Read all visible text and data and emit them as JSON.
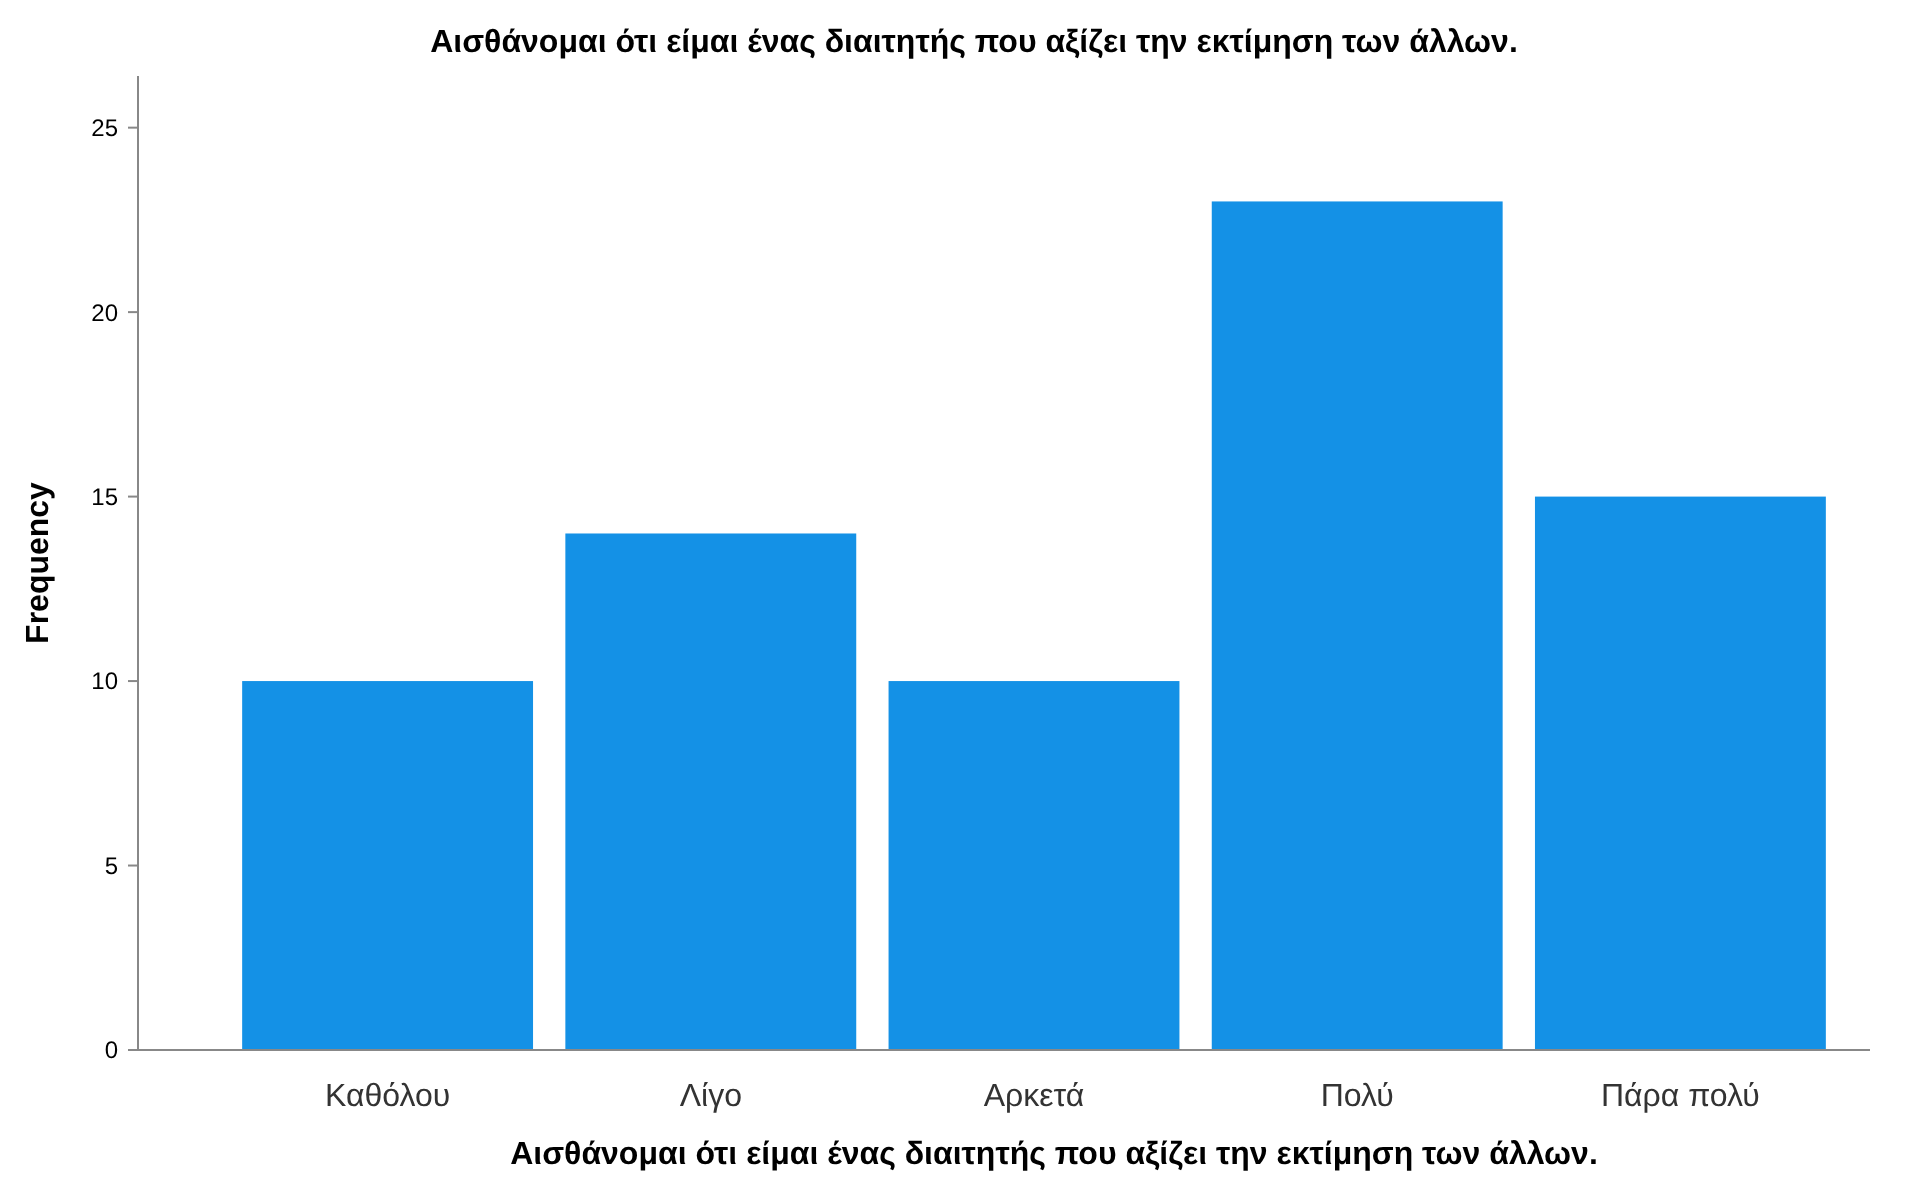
{
  "chart_data": {
    "type": "bar",
    "title": "Αισθάνομαι ότι είμαι ένας διαιτητής που αξίζει την εκτίμηση των άλλων.",
    "xlabel": "Αισθάνομαι ότι είμαι ένας διαιτητής που αξίζει την εκτίμηση των άλλων.",
    "ylabel": "Frequency",
    "categories": [
      "Καθόλου",
      "Λίγο",
      "Αρκετά",
      "Πολύ",
      "Πάρα πολύ"
    ],
    "values": [
      10,
      14,
      10,
      23,
      15
    ],
    "color": "#1491e6",
    "ylim": [
      0,
      26.4
    ],
    "yticks": [
      0,
      5,
      10,
      15,
      20,
      25
    ],
    "grid": false
  }
}
